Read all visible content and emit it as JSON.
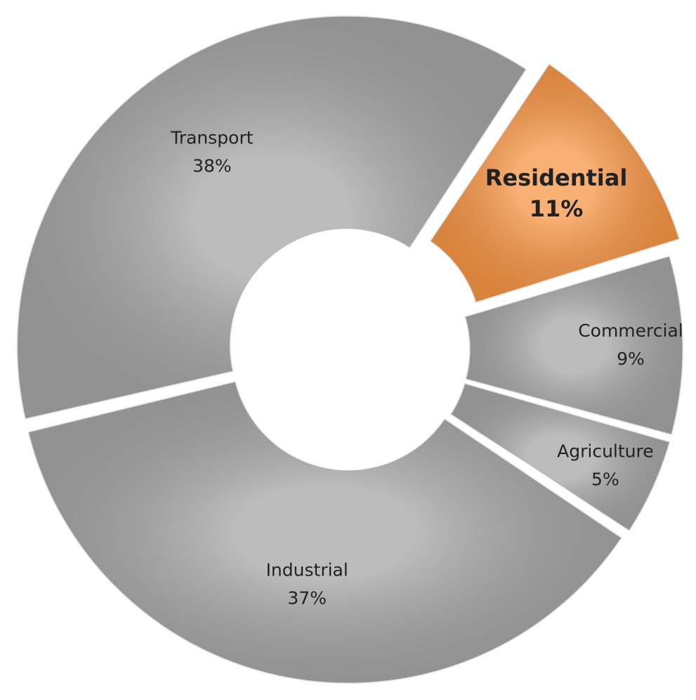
{
  "chart_data": {
    "type": "donut",
    "categories": [
      "Residential",
      "Commercial",
      "Agriculture",
      "Industrial",
      "Transport"
    ],
    "values": [
      11,
      9,
      5,
      37,
      38
    ],
    "value_labels": [
      "11%",
      "9%",
      "5%",
      "37%",
      "38%"
    ],
    "colors": [
      "#f79646",
      "#a6a6a6",
      "#a6a6a6",
      "#a6a6a6",
      "#a6a6a6"
    ],
    "highlighted": "Residential"
  }
}
